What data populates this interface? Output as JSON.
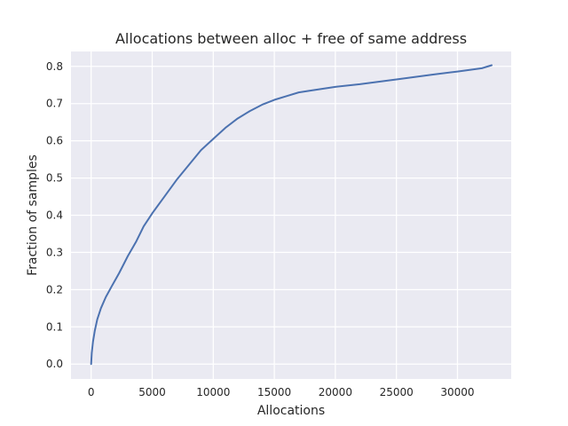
{
  "colors": {
    "plot_background": "#EAEAF2",
    "grid": "#FFFFFF",
    "line": "#4C72B0",
    "text": "#262626"
  },
  "chart_data": {
    "type": "line",
    "title": "Allocations between alloc + free of same address",
    "xlabel": "Allocations",
    "ylabel": "Fraction of samples",
    "xlim": [
      -1650,
      34400
    ],
    "ylim": [
      -0.04,
      0.84
    ],
    "xticks": [
      0,
      5000,
      10000,
      15000,
      20000,
      25000,
      30000
    ],
    "yticks": [
      0.0,
      0.1,
      0.2,
      0.3,
      0.4,
      0.5,
      0.6,
      0.7,
      0.8
    ],
    "xtick_labels": [
      "0",
      "5000",
      "10000",
      "15000",
      "20000",
      "25000",
      "30000"
    ],
    "ytick_labels": [
      "0.0",
      "0.1",
      "0.2",
      "0.3",
      "0.4",
      "0.5",
      "0.6",
      "0.7",
      "0.8"
    ],
    "grid": true,
    "series": [
      {
        "x": [
          0,
          50,
          150,
          300,
          500,
          800,
          1200,
          1700,
          2300,
          3000,
          3700,
          4300,
          5000,
          6000,
          7000,
          8000,
          9000,
          10000,
          11000,
          12000,
          13000,
          14000,
          15000,
          16000,
          17000,
          18000,
          20000,
          22000,
          25000,
          28000,
          30000,
          32000,
          32800
        ],
        "y": [
          0.0,
          0.03,
          0.06,
          0.09,
          0.12,
          0.15,
          0.18,
          0.21,
          0.245,
          0.29,
          0.33,
          0.37,
          0.405,
          0.45,
          0.495,
          0.535,
          0.575,
          0.605,
          0.635,
          0.66,
          0.68,
          0.697,
          0.71,
          0.72,
          0.73,
          0.735,
          0.745,
          0.752,
          0.765,
          0.778,
          0.786,
          0.795,
          0.803
        ]
      }
    ]
  }
}
